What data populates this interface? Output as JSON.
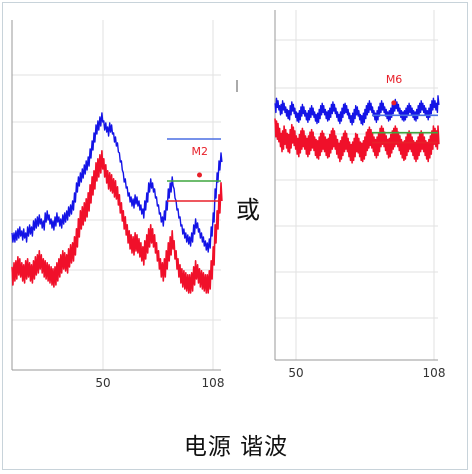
{
  "caption": "电源 谐波",
  "connector": "或",
  "chart_data": [
    {
      "type": "line",
      "xlim": [
        1,
        108
      ],
      "x_ticks": [
        "50",
        "108"
      ],
      "grid": true,
      "series": [
        {
          "color": "#1414e6",
          "y": [
            30,
            30,
            31,
            32,
            33,
            31,
            32,
            30,
            33,
            34,
            33,
            36,
            37,
            38,
            39,
            37,
            36,
            40,
            41,
            39,
            37,
            36,
            38,
            40,
            38,
            37,
            39,
            40,
            41,
            43,
            44,
            46,
            50,
            55,
            58,
            60,
            62,
            64,
            66,
            68,
            72,
            76,
            80,
            84,
            86,
            88,
            90,
            86,
            85,
            83,
            85,
            84,
            80,
            78,
            75,
            70,
            66,
            60,
            57,
            53,
            50,
            48,
            47,
            49,
            48,
            46,
            44,
            42,
            46,
            50,
            55,
            57,
            55,
            52,
            48,
            44,
            40,
            38,
            41,
            46,
            52,
            55,
            58,
            52,
            46,
            42,
            38,
            34,
            32,
            30,
            29,
            28,
            30,
            34,
            37,
            35,
            32,
            30,
            28,
            26,
            25,
            27,
            33,
            40,
            52,
            60,
            66,
            70
          ]
        },
        {
          "color": "#f0102a",
          "y": [
            12,
            14,
            15,
            17,
            16,
            14,
            13,
            15,
            16,
            14,
            13,
            15,
            17,
            18,
            20,
            18,
            16,
            15,
            14,
            13,
            12,
            11,
            12,
            14,
            16,
            18,
            20,
            19,
            18,
            21,
            23,
            24,
            27,
            31,
            36,
            40,
            42,
            44,
            46,
            49,
            53,
            57,
            60,
            64,
            66,
            68,
            70,
            66,
            63,
            60,
            59,
            58,
            56,
            55,
            52,
            48,
            44,
            40,
            37,
            33,
            30,
            28,
            27,
            29,
            28,
            26,
            24,
            22,
            25,
            28,
            31,
            33,
            31,
            28,
            24,
            20,
            16,
            14,
            16,
            20,
            24,
            27,
            30,
            25,
            20,
            16,
            13,
            11,
            10,
            9,
            8,
            8,
            9,
            12,
            15,
            13,
            11,
            10,
            9,
            8,
            8,
            10,
            15,
            22,
            33,
            40,
            48,
            54
          ]
        }
      ],
      "lines": [
        {
          "color": "#4a6fe3",
          "y": 78
        },
        {
          "color": "#3fa63f",
          "y": 57
        },
        {
          "color": "#e8202a",
          "y": 47
        }
      ],
      "marker": {
        "label": "M2",
        "x": 97,
        "y": 60
      },
      "ylim": [
        0,
        100
      ]
    },
    {
      "type": "line",
      "xlim": [
        1,
        108
      ],
      "x_ticks": [
        "50",
        "108"
      ],
      "grid": true,
      "series": [
        {
          "color": "#1414e6",
          "y": [
            86,
            90,
            88,
            84,
            85,
            88,
            86,
            83,
            81,
            80,
            84,
            87,
            85,
            82,
            79,
            78,
            80,
            83,
            85,
            83,
            80,
            78,
            80,
            82,
            84,
            82,
            79,
            77,
            78,
            81,
            84,
            86,
            84,
            81,
            79,
            80,
            82,
            85,
            87,
            85,
            82,
            79,
            77,
            79,
            82,
            85,
            86,
            84,
            81,
            78,
            76,
            78,
            81,
            84,
            83,
            80,
            77,
            76,
            78,
            81,
            84,
            86,
            88,
            86,
            83,
            80,
            78,
            80,
            83,
            86,
            88,
            86,
            83,
            81,
            79,
            80,
            82,
            85,
            87,
            89,
            87,
            85,
            82,
            80,
            79,
            80,
            82,
            84,
            86,
            84,
            82,
            80,
            79,
            81,
            84,
            86,
            88,
            86,
            84,
            82,
            80,
            82,
            85,
            88,
            90,
            88,
            86,
            92
          ]
        },
        {
          "color": "#f0102a",
          "y": [
            72,
            70,
            68,
            64,
            60,
            62,
            66,
            63,
            60,
            59,
            63,
            67,
            65,
            62,
            58,
            56,
            59,
            62,
            64,
            62,
            58,
            56,
            58,
            61,
            63,
            61,
            57,
            55,
            54,
            57,
            60,
            62,
            60,
            57,
            55,
            56,
            59,
            62,
            64,
            62,
            58,
            55,
            52,
            54,
            57,
            60,
            62,
            60,
            56,
            53,
            51,
            53,
            56,
            60,
            59,
            56,
            53,
            52,
            54,
            57,
            61,
            63,
            65,
            63,
            60,
            57,
            55,
            57,
            60,
            64,
            66,
            64,
            61,
            58,
            55,
            56,
            59,
            62,
            64,
            66,
            64,
            61,
            58,
            55,
            53,
            54,
            57,
            60,
            62,
            60,
            57,
            54,
            52,
            54,
            57,
            60,
            62,
            60,
            57,
            54,
            52,
            55,
            58,
            62,
            66,
            64,
            62,
            66
          ]
        }
      ],
      "lines": [
        {
          "color": "#4a6fe3",
          "y": 78
        },
        {
          "color": "#3fa63f",
          "y": 64
        },
        {
          "color": "#e8202a",
          "y": 56
        }
      ],
      "marker": {
        "label": "M6",
        "x": 79,
        "y": 88
      },
      "ylim": [
        0,
        100
      ]
    }
  ]
}
